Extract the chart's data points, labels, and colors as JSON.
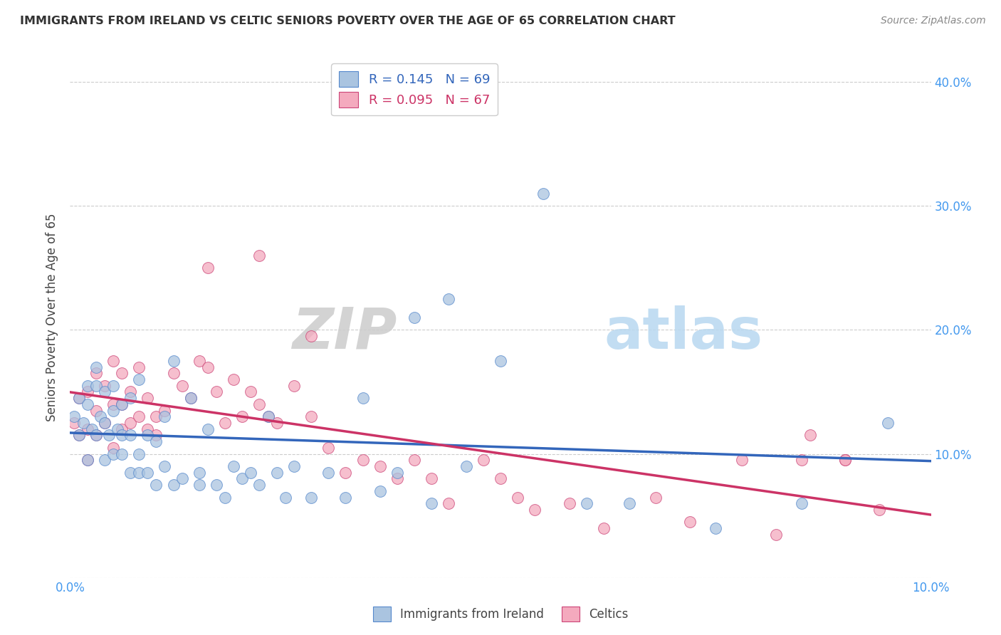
{
  "title": "IMMIGRANTS FROM IRELAND VS CELTIC SENIORS POVERTY OVER THE AGE OF 65 CORRELATION CHART",
  "source": "Source: ZipAtlas.com",
  "ylabel": "Seniors Poverty Over the Age of 65",
  "xlim": [
    0.0,
    0.1
  ],
  "ylim": [
    0.0,
    0.42
  ],
  "xticks": [
    0.0,
    0.02,
    0.04,
    0.06,
    0.08,
    0.1
  ],
  "yticks": [
    0.0,
    0.1,
    0.2,
    0.3,
    0.4
  ],
  "blue_R": 0.145,
  "blue_N": 69,
  "pink_R": 0.095,
  "pink_N": 67,
  "blue_color": "#aac4e0",
  "pink_color": "#f4aabe",
  "blue_edge_color": "#5588cc",
  "pink_edge_color": "#cc4477",
  "blue_line_color": "#3366bb",
  "pink_line_color": "#cc3366",
  "tick_color": "#4499ee",
  "legend_label_blue": "Immigrants from Ireland",
  "legend_label_pink": "Celtics",
  "blue_x": [
    0.0005,
    0.001,
    0.001,
    0.0015,
    0.002,
    0.002,
    0.002,
    0.0025,
    0.003,
    0.003,
    0.003,
    0.0035,
    0.004,
    0.004,
    0.004,
    0.0045,
    0.005,
    0.005,
    0.005,
    0.0055,
    0.006,
    0.006,
    0.006,
    0.007,
    0.007,
    0.007,
    0.008,
    0.008,
    0.008,
    0.009,
    0.009,
    0.01,
    0.01,
    0.011,
    0.011,
    0.012,
    0.012,
    0.013,
    0.014,
    0.015,
    0.015,
    0.016,
    0.017,
    0.018,
    0.019,
    0.02,
    0.021,
    0.022,
    0.023,
    0.024,
    0.025,
    0.026,
    0.028,
    0.03,
    0.032,
    0.034,
    0.036,
    0.038,
    0.04,
    0.042,
    0.044,
    0.046,
    0.05,
    0.055,
    0.06,
    0.065,
    0.075,
    0.085,
    0.095
  ],
  "blue_y": [
    0.13,
    0.115,
    0.145,
    0.125,
    0.095,
    0.14,
    0.155,
    0.12,
    0.115,
    0.155,
    0.17,
    0.13,
    0.095,
    0.125,
    0.15,
    0.115,
    0.1,
    0.135,
    0.155,
    0.12,
    0.115,
    0.14,
    0.1,
    0.085,
    0.115,
    0.145,
    0.16,
    0.1,
    0.085,
    0.115,
    0.085,
    0.075,
    0.11,
    0.09,
    0.13,
    0.175,
    0.075,
    0.08,
    0.145,
    0.085,
    0.075,
    0.12,
    0.075,
    0.065,
    0.09,
    0.08,
    0.085,
    0.075,
    0.13,
    0.085,
    0.065,
    0.09,
    0.065,
    0.085,
    0.065,
    0.145,
    0.07,
    0.085,
    0.21,
    0.06,
    0.225,
    0.09,
    0.175,
    0.31,
    0.06,
    0.06,
    0.04,
    0.06,
    0.125
  ],
  "pink_x": [
    0.0005,
    0.001,
    0.001,
    0.002,
    0.002,
    0.002,
    0.003,
    0.003,
    0.003,
    0.004,
    0.004,
    0.005,
    0.005,
    0.005,
    0.006,
    0.006,
    0.006,
    0.007,
    0.007,
    0.008,
    0.008,
    0.009,
    0.009,
    0.01,
    0.01,
    0.011,
    0.012,
    0.013,
    0.014,
    0.015,
    0.016,
    0.017,
    0.018,
    0.019,
    0.02,
    0.021,
    0.022,
    0.023,
    0.024,
    0.026,
    0.028,
    0.03,
    0.032,
    0.034,
    0.036,
    0.038,
    0.04,
    0.042,
    0.044,
    0.048,
    0.05,
    0.052,
    0.054,
    0.058,
    0.062,
    0.068,
    0.072,
    0.078,
    0.082,
    0.086,
    0.09,
    0.094,
    0.016,
    0.022,
    0.028,
    0.085,
    0.09
  ],
  "pink_y": [
    0.125,
    0.115,
    0.145,
    0.095,
    0.12,
    0.15,
    0.115,
    0.135,
    0.165,
    0.125,
    0.155,
    0.105,
    0.14,
    0.175,
    0.12,
    0.14,
    0.165,
    0.125,
    0.15,
    0.13,
    0.17,
    0.12,
    0.145,
    0.115,
    0.13,
    0.135,
    0.165,
    0.155,
    0.145,
    0.175,
    0.17,
    0.15,
    0.125,
    0.16,
    0.13,
    0.15,
    0.14,
    0.13,
    0.125,
    0.155,
    0.13,
    0.105,
    0.085,
    0.095,
    0.09,
    0.08,
    0.095,
    0.08,
    0.06,
    0.095,
    0.08,
    0.065,
    0.055,
    0.06,
    0.04,
    0.065,
    0.045,
    0.095,
    0.035,
    0.115,
    0.095,
    0.055,
    0.25,
    0.26,
    0.195,
    0.095,
    0.095
  ],
  "watermark_zip": "ZIP",
  "watermark_atlas": "atlas"
}
